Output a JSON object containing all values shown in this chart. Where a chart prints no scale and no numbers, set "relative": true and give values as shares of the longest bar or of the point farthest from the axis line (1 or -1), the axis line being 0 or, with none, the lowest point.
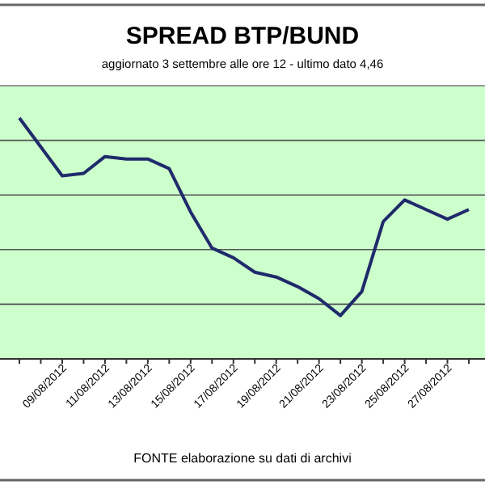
{
  "chart_data": {
    "type": "line",
    "title": "SPREAD  BTP/BUND",
    "subtitle": "aggiornato 3 settembre alle ore 12 - ultimo dato 4,46",
    "relative": true,
    "grid": "y",
    "marker": "none",
    "line_style": "solid",
    "categories": [
      null,
      null,
      "09/08/2012",
      null,
      "11/08/2012",
      null,
      "13/08/2012",
      null,
      "15/08/2012",
      null,
      "17/08/2012",
      null,
      "19/08/2012",
      null,
      "21/08/2012",
      null,
      "23/08/2012",
      null,
      "25/08/2012",
      null,
      "27/08/2012",
      null
    ],
    "series": [
      {
        "color": "#1f2a6b",
        "values": [
          1.0,
          0.88,
          0.76,
          0.77,
          0.84,
          0.83,
          0.83,
          0.79,
          0.61,
          0.46,
          0.42,
          0.36,
          0.34,
          0.3,
          0.25,
          0.18,
          0.28,
          0.57,
          0.66,
          0.62,
          0.58,
          0.62
        ]
      }
    ],
    "annotations": [
      "FONTE elaborazione su dati di archivi"
    ]
  }
}
